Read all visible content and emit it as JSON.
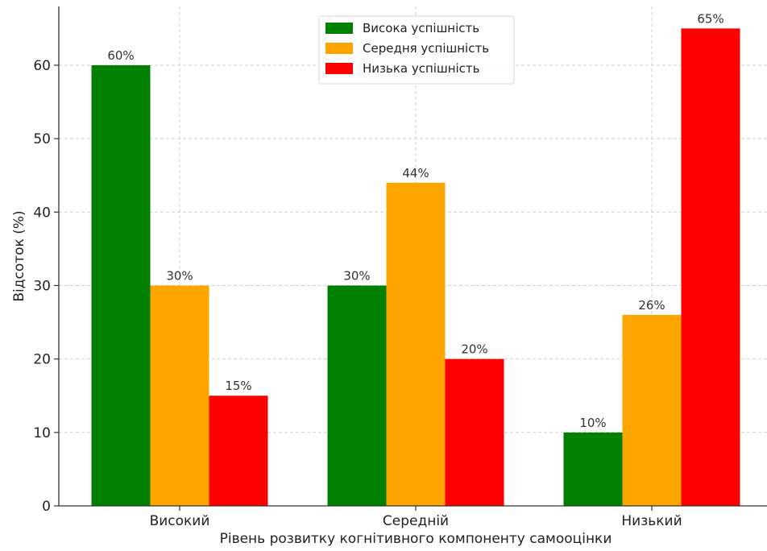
{
  "chart_data": {
    "type": "bar",
    "categories": [
      "Високий",
      "Середній",
      "Низький"
    ],
    "series": [
      {
        "name": "Висока успішність",
        "color": "#008000",
        "values": [
          60,
          30,
          10
        ]
      },
      {
        "name": "Середня успішність",
        "color": "#FFA500",
        "values": [
          30,
          44,
          26
        ]
      },
      {
        "name": "Низька успішність",
        "color": "#FF0000",
        "values": [
          15,
          20,
          65
        ]
      }
    ],
    "value_suffix": "%",
    "xlabel": "Рівень розвитку когнітивного компоненту самооцінки",
    "ylabel": "Відсоток (%)",
    "ylim": [
      0,
      68
    ],
    "yticks": [
      0,
      10,
      20,
      30,
      40,
      50,
      60
    ],
    "grid": true,
    "legend_position": "top-center"
  }
}
